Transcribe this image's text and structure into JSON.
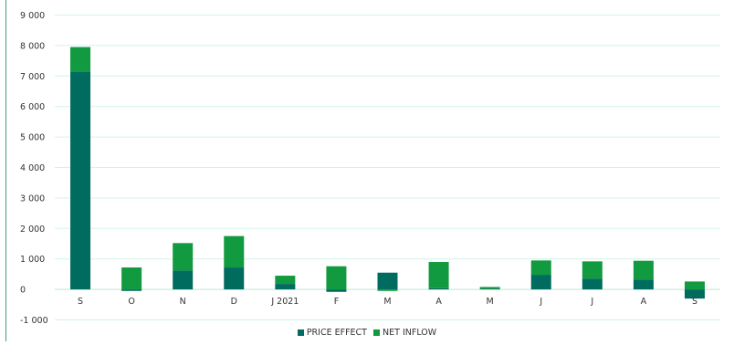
{
  "chart_data": {
    "type": "bar",
    "stacked": true,
    "categories": [
      "S",
      "O",
      "N",
      "D",
      "J 2021",
      "F",
      "M",
      "A",
      "M",
      "J",
      "J",
      "A",
      "S"
    ],
    "series": [
      {
        "name": "PRICE EFFECT",
        "color": "#006b5f",
        "values": [
          7150,
          -50,
          620,
          720,
          180,
          -80,
          550,
          40,
          20,
          480,
          350,
          320,
          -300
        ]
      },
      {
        "name": "NET INFLOW",
        "color": "#119a3f",
        "values": [
          800,
          720,
          900,
          1030,
          270,
          760,
          -50,
          860,
          60,
          470,
          570,
          620,
          260
        ]
      }
    ],
    "y_ticks": [
      "-1 000",
      "0",
      "1 000",
      "2 000",
      "3 000",
      "4 000",
      "5 000",
      "6 000",
      "7 000",
      "8 000",
      "9 000"
    ],
    "ylim": [
      -1000,
      9000
    ],
    "grid": true,
    "legend_position": "bottom-center"
  }
}
